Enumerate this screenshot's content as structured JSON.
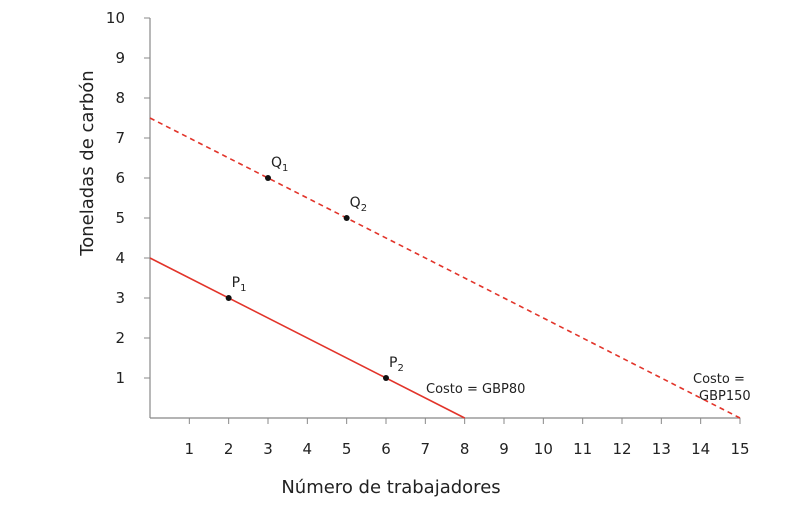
{
  "chart_data": {
    "type": "line",
    "xlabel": "Número de trabajadores",
    "ylabel": "Toneladas de carbón",
    "xlim": [
      0,
      15
    ],
    "ylim": [
      0,
      10
    ],
    "x_ticks": [
      1,
      2,
      3,
      4,
      5,
      6,
      7,
      8,
      9,
      10,
      11,
      12,
      13,
      14,
      15
    ],
    "y_ticks": [
      1,
      2,
      3,
      4,
      5,
      6,
      7,
      8,
      9,
      10
    ],
    "grid": false,
    "series": [
      {
        "style": "solid",
        "color": "#e2342a",
        "points": [
          [
            0,
            4
          ],
          [
            8,
            0
          ]
        ],
        "annotation": {
          "line1": "Costo = GBP80",
          "line2": ""
        }
      },
      {
        "style": "dashed",
        "color": "#e2342a",
        "points": [
          [
            0,
            7.5
          ],
          [
            15,
            0
          ]
        ],
        "annotation": {
          "line1": "Costo =",
          "line2": "GBP150"
        }
      }
    ],
    "labeled_points": [
      {
        "letter": "P",
        "sub": "1",
        "x": 2,
        "y": 3
      },
      {
        "letter": "P",
        "sub": "2",
        "x": 6,
        "y": 1
      },
      {
        "letter": "Q",
        "sub": "1",
        "x": 3,
        "y": 6
      },
      {
        "letter": "Q",
        "sub": "2",
        "x": 5,
        "y": 5
      }
    ]
  }
}
